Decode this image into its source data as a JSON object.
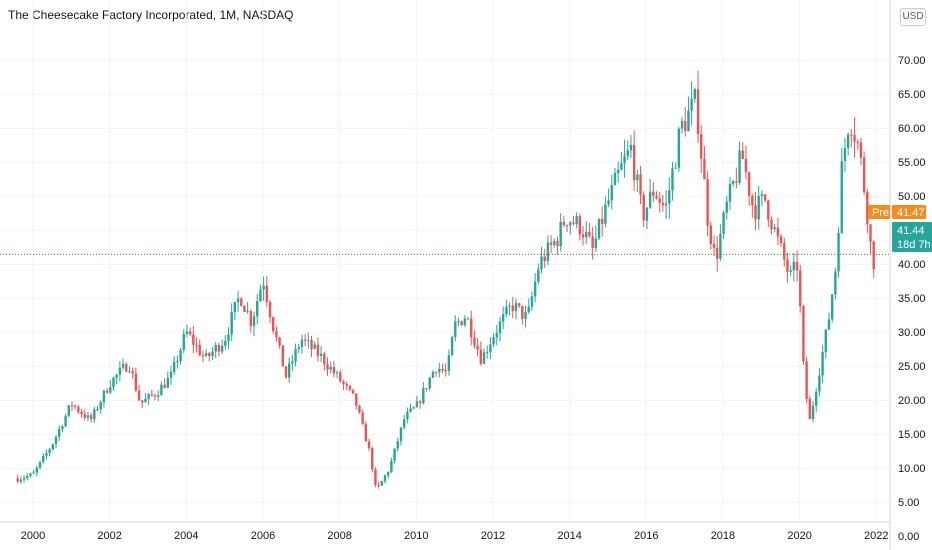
{
  "header": {
    "title": "The Cheesecake Factory Incorporated, 1M, NASDAQ",
    "currency": "USD"
  },
  "price_labels": {
    "pre_tag": "Pre",
    "pre_value": "41.47",
    "last_value": "41.44",
    "countdown": "18d 7h"
  },
  "colors": {
    "up": "#26a69a",
    "down": "#ef5350",
    "pre_badge": "#f68b1f",
    "last_badge": "#26a69a",
    "grid": "#f0f3fa",
    "price_line": "#4a7a2c"
  },
  "chart_data": {
    "type": "candlestick",
    "title": "The Cheesecake Factory Incorporated, 1M, NASDAQ",
    "interval": "1M",
    "exchange": "NASDAQ",
    "currency": "USD",
    "y_ticks": [
      "0.00",
      "5.00",
      "10.00",
      "15.00",
      "20.00",
      "25.00",
      "30.00",
      "35.00",
      "40.00",
      "45.00",
      "50.00",
      "55.00",
      "60.00",
      "65.00",
      "70.00"
    ],
    "x_ticks": [
      "2000",
      "2002",
      "2004",
      "2006",
      "2008",
      "2010",
      "2012",
      "2014",
      "2016",
      "2018",
      "2020",
      "2022"
    ],
    "ylim": [
      -1,
      71
    ],
    "xlim": [
      1999.6,
      2022.3
    ],
    "grid": true,
    "pre_market_price": 41.47,
    "last_price": 41.44,
    "close_path": [
      [
        1999.6,
        8.5
      ],
      [
        2000.0,
        9.0
      ],
      [
        2000.5,
        13.5
      ],
      [
        2001.0,
        19.5
      ],
      [
        2001.5,
        17.0
      ],
      [
        2002.0,
        22.5
      ],
      [
        2002.5,
        25.5
      ],
      [
        2002.8,
        19.5
      ],
      [
        2003.2,
        21.0
      ],
      [
        2003.6,
        23.5
      ],
      [
        2004.0,
        30.0
      ],
      [
        2004.5,
        26.0
      ],
      [
        2005.0,
        29.0
      ],
      [
        2005.4,
        35.5
      ],
      [
        2005.7,
        31.5
      ],
      [
        2006.0,
        38.0
      ],
      [
        2006.3,
        30.0
      ],
      [
        2006.6,
        23.5
      ],
      [
        2007.0,
        29.0
      ],
      [
        2007.5,
        26.5
      ],
      [
        2008.0,
        23.0
      ],
      [
        2008.4,
        20.0
      ],
      [
        2008.8,
        12.0
      ],
      [
        2008.95,
        6.5
      ],
      [
        2009.3,
        10.0
      ],
      [
        2009.7,
        17.5
      ],
      [
        2010.0,
        19.0
      ],
      [
        2010.5,
        25.0
      ],
      [
        2010.8,
        24.0
      ],
      [
        2011.0,
        31.0
      ],
      [
        2011.3,
        32.5
      ],
      [
        2011.7,
        26.0
      ],
      [
        2012.0,
        29.5
      ],
      [
        2012.5,
        34.0
      ],
      [
        2012.9,
        32.0
      ],
      [
        2013.2,
        40.0
      ],
      [
        2013.7,
        44.0
      ],
      [
        2013.9,
        47.0
      ],
      [
        2014.3,
        45.5
      ],
      [
        2014.6,
        42.0
      ],
      [
        2014.9,
        47.5
      ],
      [
        2015.3,
        53.5
      ],
      [
        2015.6,
        57.0
      ],
      [
        2015.9,
        47.0
      ],
      [
        2016.2,
        51.0
      ],
      [
        2016.5,
        48.0
      ],
      [
        2016.9,
        60.0
      ],
      [
        2017.3,
        64.0
      ],
      [
        2017.6,
        47.0
      ],
      [
        2017.8,
        40.5
      ],
      [
        2018.1,
        48.5
      ],
      [
        2018.5,
        56.0
      ],
      [
        2018.8,
        48.0
      ],
      [
        2019.1,
        49.5
      ],
      [
        2019.4,
        44.0
      ],
      [
        2019.75,
        38.0
      ],
      [
        2019.95,
        40.0
      ],
      [
        2020.1,
        25.0
      ],
      [
        2020.25,
        16.5
      ],
      [
        2020.5,
        24.0
      ],
      [
        2020.75,
        31.5
      ],
      [
        2020.95,
        40.0
      ],
      [
        2021.1,
        54.0
      ],
      [
        2021.3,
        62.0
      ],
      [
        2021.55,
        57.0
      ],
      [
        2021.75,
        48.5
      ],
      [
        2021.9,
        40.0
      ],
      [
        2022.0,
        41.44
      ]
    ]
  }
}
